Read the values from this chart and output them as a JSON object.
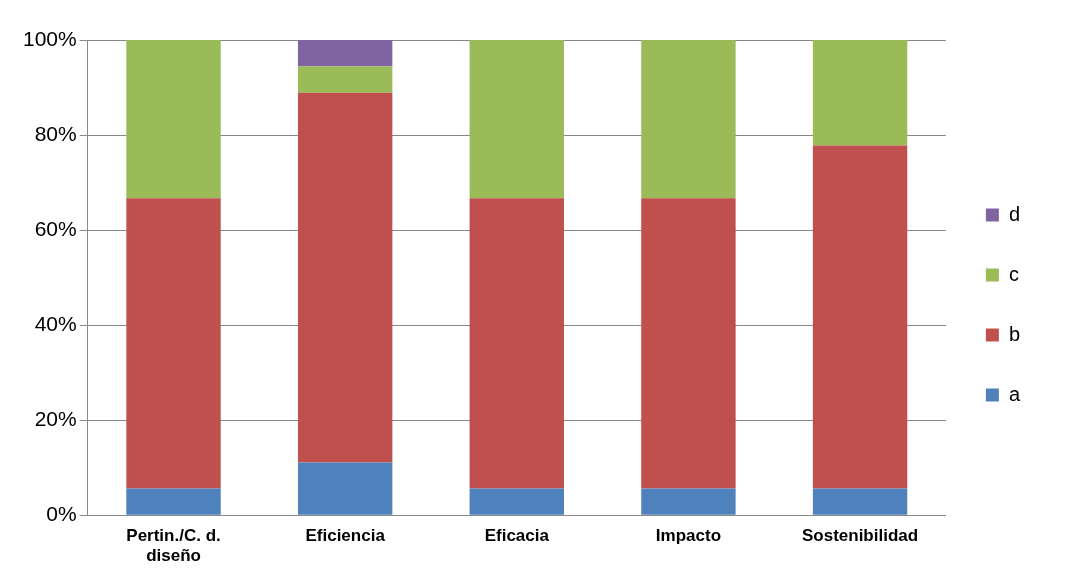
{
  "chart_data": {
    "type": "bar",
    "stacked": true,
    "categories": [
      "Pertin./C. d. diseño",
      "Eficiencia",
      "Eficacia",
      "Impacto",
      "Sostenibilidad"
    ],
    "series": [
      {
        "name": "a",
        "color": "#4f81bd",
        "values": [
          5.6,
          11.1,
          5.6,
          5.6,
          5.6
        ]
      },
      {
        "name": "b",
        "color": "#c0504d",
        "values": [
          61.1,
          77.8,
          61.1,
          61.1,
          72.2
        ]
      },
      {
        "name": "c",
        "color": "#9bbb59",
        "values": [
          33.3,
          5.6,
          33.3,
          33.3,
          22.2
        ]
      },
      {
        "name": "d",
        "color": "#8064a2",
        "values": [
          0,
          5.5,
          0,
          0,
          0
        ]
      }
    ],
    "ylim": [
      0,
      100
    ],
    "yticks": [
      {
        "value": 0,
        "label": "0%"
      },
      {
        "value": 20,
        "label": "20%"
      },
      {
        "value": 40,
        "label": "40%"
      },
      {
        "value": 60,
        "label": "60%"
      },
      {
        "value": 80,
        "label": "80%"
      },
      {
        "value": 100,
        "label": "100%"
      }
    ],
    "grid": "y",
    "legend": "right"
  }
}
